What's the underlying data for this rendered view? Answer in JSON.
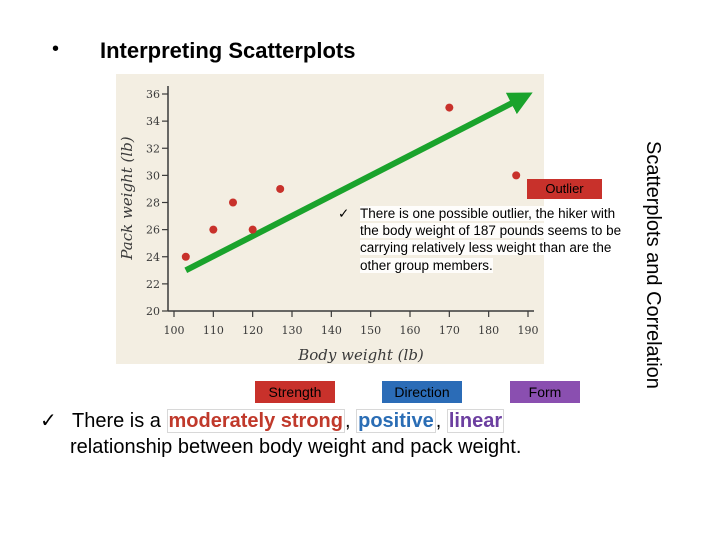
{
  "slide": {
    "bullet": "•",
    "title": "Interpreting Scatterplots",
    "side_title": "Scatterplots and Correlation"
  },
  "chart_data": {
    "type": "scatter",
    "xlabel": "Body weight (lb)",
    "ylabel": "Pack weight (lb)",
    "xlim": [
      100,
      190
    ],
    "ylim": [
      20,
      36
    ],
    "xticks": [
      100,
      110,
      120,
      130,
      140,
      150,
      160,
      170,
      180,
      190
    ],
    "yticks": [
      20,
      22,
      24,
      26,
      28,
      30,
      32,
      34,
      36
    ],
    "grid": false,
    "points": [
      {
        "x": 103,
        "y": 24
      },
      {
        "x": 110,
        "y": 26
      },
      {
        "x": 115,
        "y": 28
      },
      {
        "x": 120,
        "y": 26
      },
      {
        "x": 127,
        "y": 29
      },
      {
        "x": 170,
        "y": 35
      },
      {
        "x": 187,
        "y": 30
      }
    ],
    "trend_arrow": {
      "from": {
        "x": 103,
        "y": 23
      },
      "to": {
        "x": 190,
        "y": 36
      }
    },
    "colors": {
      "points": "#c8312b",
      "arrow": "#1aa32c",
      "panel": "#f3eee2",
      "ink": "#3a3a3a"
    }
  },
  "annotation": {
    "outlier_label": "Outlier",
    "check": "ü",
    "note": "There is one possible outlier, the hiker with the body weight of 187 pounds seems to be carrying relatively less weight than are the other group members."
  },
  "tags": {
    "strength": "Strength",
    "direction": "Direction",
    "form": "Form"
  },
  "conclusion": {
    "check": "ü",
    "prefix": "There is a",
    "strength": "moderately strong",
    "comma1": ",",
    "direction": "positive",
    "comma2": ",",
    "form": "linear",
    "line2": "relationship between body weight and pack weight."
  },
  "colors": {
    "strength": "#c8312b",
    "direction": "#2b6cb7",
    "form": "#8a4fb0"
  }
}
